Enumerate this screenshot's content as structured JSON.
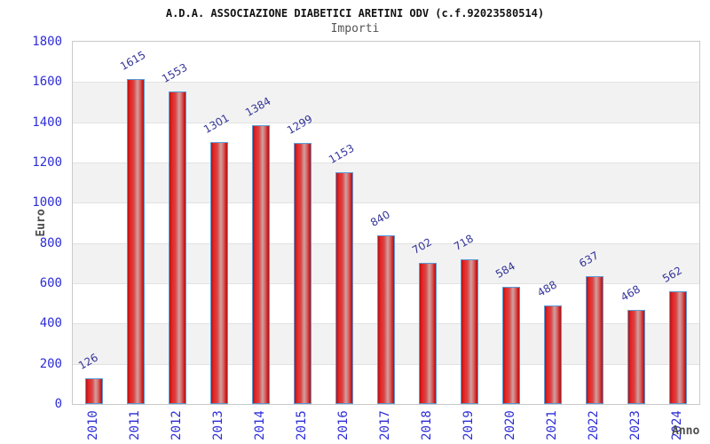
{
  "header": {
    "title": "A.D.A. ASSOCIAZIONE DIABETICI ARETINI ODV (c.f.92023580514)",
    "subtitle": "Importi"
  },
  "chart_data": {
    "type": "bar",
    "title": "A.D.A. ASSOCIAZIONE DIABETICI ARETINI ODV (c.f.92023580514)",
    "subtitle": "Importi",
    "xlabel": "Anno",
    "ylabel": "Euro",
    "categories": [
      "2010",
      "2011",
      "2012",
      "2013",
      "2014",
      "2015",
      "2016",
      "2017",
      "2018",
      "2019",
      "2020",
      "2021",
      "2022",
      "2023",
      "2024"
    ],
    "values": [
      126,
      1615,
      1553,
      1301,
      1384,
      1299,
      1153,
      840,
      702,
      718,
      584,
      488,
      637,
      468,
      562
    ],
    "ylim": [
      0,
      1800
    ],
    "ytick_step": 200,
    "grid": true,
    "legend": "none",
    "colors": {
      "bar_fill_main": "#d92020",
      "bar_fill_highlight": "#d0a0a0",
      "bar_border": "#5b9bd5",
      "tick_label": "#2d2dd8",
      "value_label": "#333399",
      "axis_title": "#4d4d4d",
      "band_gray": "#f2f2f2",
      "band_white": "#ffffff",
      "gridline": "#e2e2e2",
      "plot_border": "#c9c9c9",
      "title": "#111111",
      "subtitle": "#555555"
    }
  }
}
